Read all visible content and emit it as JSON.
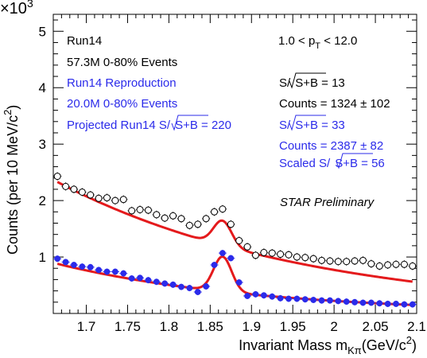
{
  "chart_data": {
    "type": "scatter",
    "title": "",
    "xlabel": "Invariant Mass m",
    "xlabel_subscript": "Kπ",
    "xlabel_unit": "(GeV/c",
    "xlabel_unit_sup": "2",
    "xlabel_close": ")",
    "ylabel": "Counts (per 10 MeV/c",
    "ylabel_sup": "2",
    "ylabel_close": ")",
    "y_multiplier": "×10",
    "y_multiplier_exp": "3",
    "xlim": [
      1.66,
      2.1
    ],
    "ylim": [
      0,
      5.3
    ],
    "x_ticks": [
      "1.7",
      "1.75",
      "1.8",
      "1.85",
      "1.9",
      "1.95",
      "2",
      "2.05",
      "2.1"
    ],
    "y_ticks": [
      "1",
      "2",
      "3",
      "4",
      "5"
    ],
    "grid": false,
    "colors": {
      "run14": "#000000",
      "reproduction": "#2b2bea",
      "fit": "#e41a1c"
    },
    "series": [
      {
        "name": "Run14",
        "color": "#000000",
        "marker": "open-circle",
        "x": [
          1.665,
          1.675,
          1.685,
          1.695,
          1.705,
          1.715,
          1.725,
          1.735,
          1.745,
          1.755,
          1.765,
          1.775,
          1.785,
          1.795,
          1.805,
          1.815,
          1.825,
          1.835,
          1.845,
          1.855,
          1.865,
          1.875,
          1.885,
          1.895,
          1.905,
          1.915,
          1.925,
          1.935,
          1.945,
          1.955,
          1.965,
          1.975,
          1.985,
          1.995,
          2.005,
          2.015,
          2.025,
          2.035,
          2.045,
          2.055,
          2.065,
          2.075,
          2.085,
          2.095
        ],
        "y": [
          2.43,
          2.25,
          2.2,
          2.15,
          2.1,
          2.04,
          2.05,
          2.0,
          2.02,
          1.82,
          1.84,
          1.83,
          1.75,
          1.69,
          1.73,
          1.68,
          1.56,
          1.58,
          1.68,
          1.8,
          1.85,
          1.58,
          1.29,
          1.18,
          1.03,
          1.08,
          1.07,
          1.05,
          1.04,
          1.0,
          0.99,
          0.97,
          0.94,
          0.93,
          0.92,
          0.92,
          0.93,
          0.94,
          0.88,
          0.84,
          0.86,
          0.87,
          0.87,
          0.84
        ]
      },
      {
        "name": "Run14 Reproduction",
        "color": "#2b2bea",
        "marker": "filled-circle",
        "x": [
          1.665,
          1.675,
          1.685,
          1.695,
          1.705,
          1.715,
          1.725,
          1.735,
          1.745,
          1.755,
          1.765,
          1.775,
          1.785,
          1.795,
          1.805,
          1.815,
          1.825,
          1.835,
          1.845,
          1.855,
          1.865,
          1.875,
          1.885,
          1.895,
          1.905,
          1.915,
          1.925,
          1.935,
          1.945,
          1.955,
          1.965,
          1.975,
          1.985,
          1.995,
          2.005,
          2.015,
          2.025,
          2.035,
          2.045,
          2.055,
          2.065,
          2.075,
          2.085,
          2.095
        ],
        "y": [
          0.97,
          0.91,
          0.86,
          0.83,
          0.82,
          0.77,
          0.74,
          0.74,
          0.71,
          0.62,
          0.63,
          0.59,
          0.56,
          0.53,
          0.51,
          0.47,
          0.45,
          0.38,
          0.48,
          0.86,
          1.07,
          0.98,
          0.55,
          0.31,
          0.34,
          0.32,
          0.3,
          0.27,
          0.26,
          0.26,
          0.25,
          0.24,
          0.23,
          0.23,
          0.22,
          0.21,
          0.2,
          0.19,
          0.19,
          0.18,
          0.17,
          0.17,
          0.16,
          0.16
        ]
      }
    ],
    "fits": [
      {
        "name": "fit-run14",
        "bkg_a": 2.33,
        "bkg_k": 3.3,
        "peak_mu": 1.865,
        "peak_sigma": 0.011,
        "peak_amp": 0.44
      },
      {
        "name": "fit-reproduction",
        "bkg_a": 0.88,
        "bkg_k": 4.1,
        "peak_mu": 1.865,
        "peak_sigma": 0.011,
        "peak_amp": 0.62
      }
    ],
    "legend_left": [
      {
        "text": "Run14",
        "color": "#000000"
      },
      {
        "text": "57.3M 0-80% Events",
        "color": "#000000"
      },
      {
        "text": "Run14 Reproduction",
        "color": "#2b2bea"
      },
      {
        "text": "20.0M 0-80% Events",
        "color": "#2b2bea"
      },
      {
        "text": "Projected Run14 S/",
        "sqrt_text": "S+B",
        "suffix": " = 220",
        "color": "#2b2bea"
      }
    ],
    "legend_right": {
      "pt_range": {
        "prefix": "1.0 < p",
        "subscript": "T",
        "suffix": " < 12.0"
      },
      "lines": [
        {
          "text": "S/",
          "sqrt_text": "S+B",
          "suffix": " = 13",
          "color": "#000000"
        },
        {
          "text": "Counts = 1324 ± 102",
          "color": "#000000"
        },
        {
          "text": "S/",
          "sqrt_text": "S+B",
          "suffix": " = 33",
          "color": "#2b2bea"
        },
        {
          "text": "Counts = 2387 ± 82",
          "color": "#2b2bea"
        },
        {
          "text": "Scaled S/",
          "sqrt_text": "S+B",
          "suffix": " = 56",
          "color": "#2b2bea"
        }
      ]
    },
    "annotation": "STAR Preliminary"
  }
}
